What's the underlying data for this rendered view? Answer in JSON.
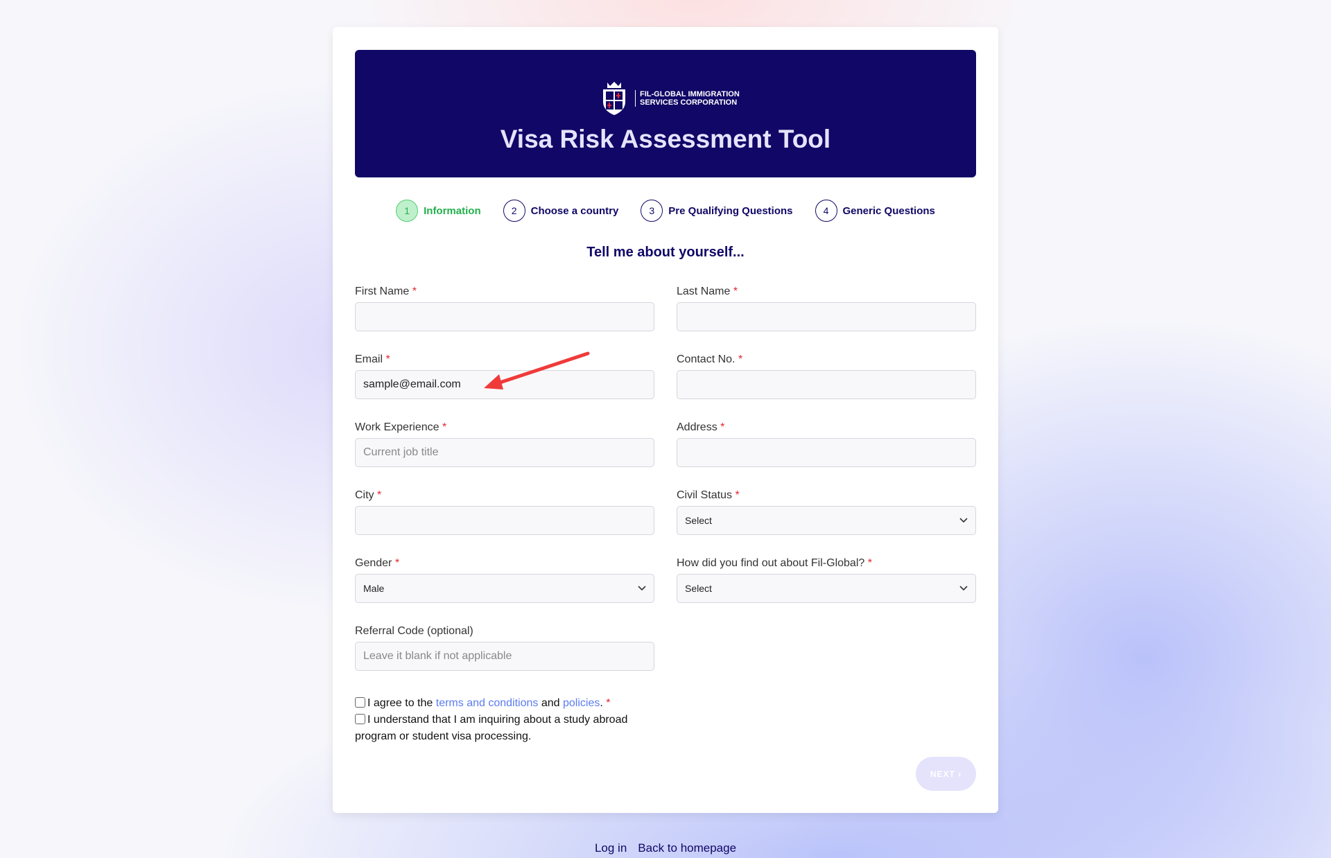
{
  "header": {
    "logo_text_line1": "FIL-GLOBAL IMMIGRATION",
    "logo_text_line2": "SERVICES CORPORATION",
    "title": "Visa Risk Assessment Tool"
  },
  "steps": [
    {
      "num": "1",
      "label": "Information",
      "active": true
    },
    {
      "num": "2",
      "label": "Choose a country"
    },
    {
      "num": "3",
      "label": "Pre Qualifying Questions"
    },
    {
      "num": "4",
      "label": "Generic Questions"
    }
  ],
  "heading": "Tell me about yourself...",
  "fields": {
    "first_name": {
      "label": "First Name",
      "value": ""
    },
    "last_name": {
      "label": "Last Name",
      "value": ""
    },
    "email": {
      "label": "Email",
      "value": "sample@email.com"
    },
    "contact": {
      "label": "Contact No.",
      "value": ""
    },
    "work": {
      "label": "Work Experience",
      "placeholder": "Current job title"
    },
    "address": {
      "label": "Address",
      "value": ""
    },
    "city": {
      "label": "City",
      "value": ""
    },
    "civil": {
      "label": "Civil Status",
      "value": "Select"
    },
    "gender": {
      "label": "Gender",
      "value": "Male"
    },
    "source": {
      "label": "How did you find out about Fil-Global?",
      "value": "Select"
    },
    "referral": {
      "label": "Referral Code (optional)",
      "placeholder": "Leave it blank if not applicable"
    }
  },
  "required_mark": "*",
  "checks": {
    "agree_pre": "I agree to the",
    "terms": "terms and conditions",
    "and": "and",
    "policies": "policies",
    "period": ".",
    "study": "I understand that I am inquiring about a study abroad program or student visa processing."
  },
  "next": "NEXT ›",
  "footer": {
    "login": "Log in",
    "home": "Back to homepage"
  },
  "colors": {
    "header_bg": "#100766",
    "active_step": "#22b04b",
    "link": "#5b7cf0",
    "annotation_arrow": "#f03a3a"
  }
}
